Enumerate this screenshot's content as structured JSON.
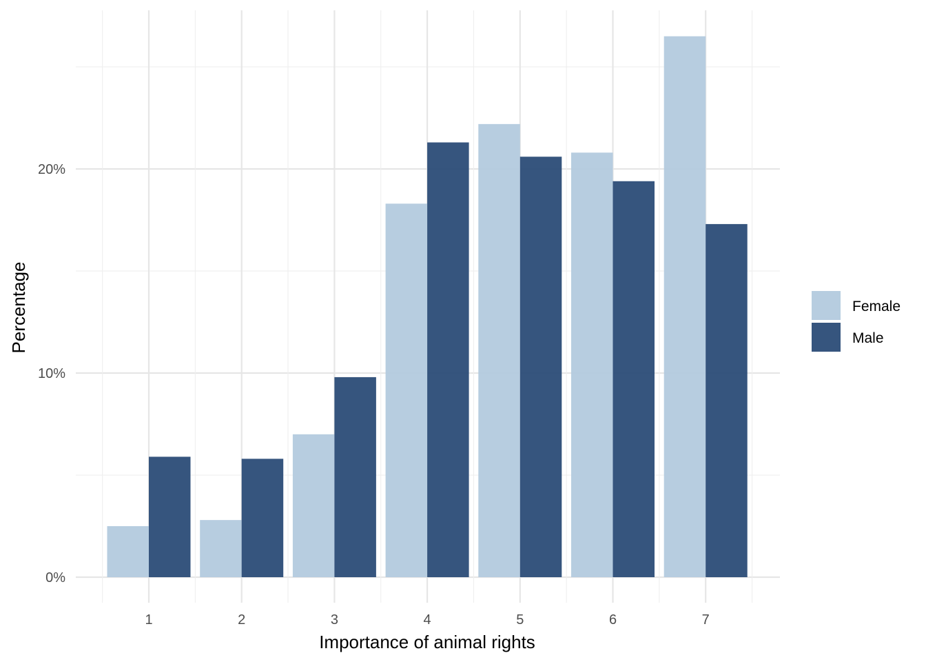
{
  "chart_data": {
    "type": "bar",
    "xlabel": "Importance of animal rights",
    "ylabel": "Percentage",
    "categories": [
      "1",
      "2",
      "3",
      "4",
      "5",
      "6",
      "7"
    ],
    "series": [
      {
        "name": "Female",
        "color": "#b3cade",
        "values": [
          2.5,
          2.8,
          7.0,
          18.3,
          22.2,
          20.8,
          26.5
        ]
      },
      {
        "name": "Male",
        "color": "#2b4c77",
        "values": [
          5.9,
          5.8,
          9.8,
          21.3,
          20.6,
          19.4,
          17.3
        ]
      }
    ],
    "ylim": [
      0,
      26.5
    ],
    "yticks": [
      {
        "value": 0,
        "label": "0%"
      },
      {
        "value": 10,
        "label": "10%"
      },
      {
        "value": 20,
        "label": "20%"
      }
    ],
    "y_minor_ticks": [
      5,
      15,
      25
    ],
    "grid": true,
    "legend_position": "right"
  }
}
